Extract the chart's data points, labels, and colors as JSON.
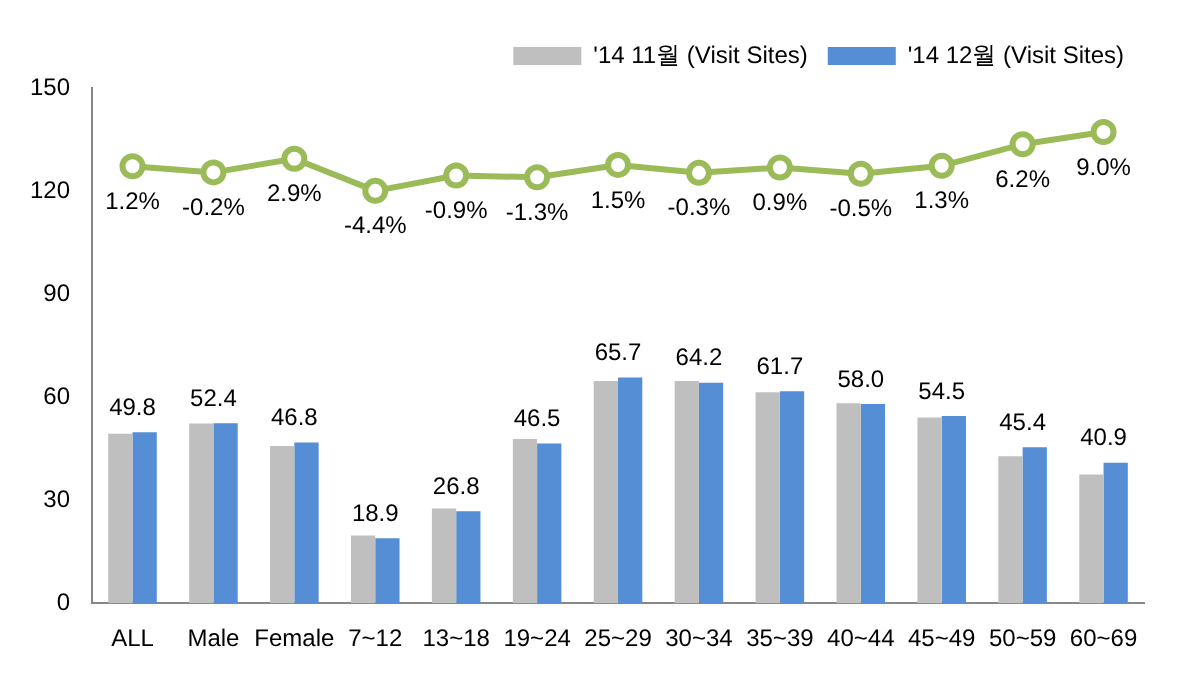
{
  "chart_data": {
    "type": "bar",
    "categories": [
      "ALL",
      "Male",
      "Female",
      "7~12",
      "13~18",
      "19~24",
      "25~29",
      "30~34",
      "35~39",
      "40~44",
      "45~49",
      "50~59",
      "60~69"
    ],
    "series": [
      {
        "name": "'14 11월 (Visit Sites)",
        "color": "#bfbfbf",
        "values": [
          49.3,
          52.3,
          45.8,
          19.7,
          27.6,
          47.8,
          64.7,
          64.7,
          61.4,
          58.2,
          54.1,
          42.8,
          37.5
        ]
      },
      {
        "name": "'14 12월 (Visit Sites)",
        "color": "#558ed5",
        "values": [
          49.8,
          52.4,
          46.8,
          18.9,
          26.8,
          46.5,
          65.7,
          64.2,
          61.7,
          58.0,
          54.5,
          45.4,
          40.9
        ],
        "value_labels": [
          "49.8",
          "52.4",
          "46.8",
          "18.9",
          "26.8",
          "46.5",
          "65.7",
          "64.2",
          "61.7",
          "58.0",
          "54.5",
          "45.4",
          "40.9"
        ]
      },
      {
        "type": "line",
        "axis": "y2",
        "color": "#9bbb59",
        "marker": "circle",
        "values": [
          1.2,
          -0.2,
          2.9,
          -4.4,
          -0.9,
          -1.3,
          1.5,
          -0.3,
          0.9,
          -0.5,
          1.3,
          6.2,
          9.0
        ],
        "value_labels": [
          "1.2%",
          "-0.2%",
          "2.9%",
          "-4.4%",
          "-0.9%",
          "-1.3%",
          "1.5%",
          "-0.3%",
          "0.9%",
          "-0.5%",
          "1.3%",
          "6.2%",
          "9.0%"
        ]
      }
    ],
    "ylim": [
      0,
      150
    ],
    "y2lim": [
      -98.2,
      19
    ],
    "yticks": [
      0,
      30,
      60,
      90,
      120,
      150
    ],
    "grid": false,
    "legend": "top right"
  }
}
